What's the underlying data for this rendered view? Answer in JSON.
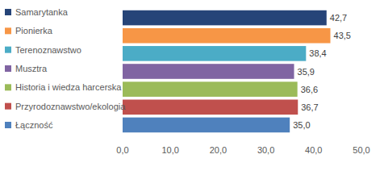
{
  "chart_data": {
    "type": "bar",
    "orientation": "horizontal",
    "categories": [
      "Samarytanka",
      "Pionierka",
      "Terenoznawstwo",
      "Musztra",
      "Historia i wiedza harcerska",
      "Przyrodoznawstwo/ekologia",
      "Łączność"
    ],
    "values": [
      42.7,
      43.5,
      38.4,
      35.9,
      36.6,
      36.7,
      35.0
    ],
    "value_labels": [
      "42,7",
      "43,5",
      "38,4",
      "35,9",
      "36,6",
      "36,7",
      "35,0"
    ],
    "colors": [
      "#264478",
      "#f79646",
      "#4bacc6",
      "#8064a2",
      "#9bbb59",
      "#c0504d",
      "#4f81bd"
    ],
    "xlim": [
      0,
      50
    ],
    "xticks": [
      {
        "value": 0,
        "label": "0,0"
      },
      {
        "value": 10,
        "label": "10,0"
      },
      {
        "value": 20,
        "label": "20,0"
      },
      {
        "value": 30,
        "label": "30,0"
      },
      {
        "value": 40,
        "label": "40,0"
      },
      {
        "value": 50,
        "label": "50,0"
      }
    ],
    "grid": false,
    "legend": "left",
    "data_labels": true,
    "tick_labels": "x"
  }
}
